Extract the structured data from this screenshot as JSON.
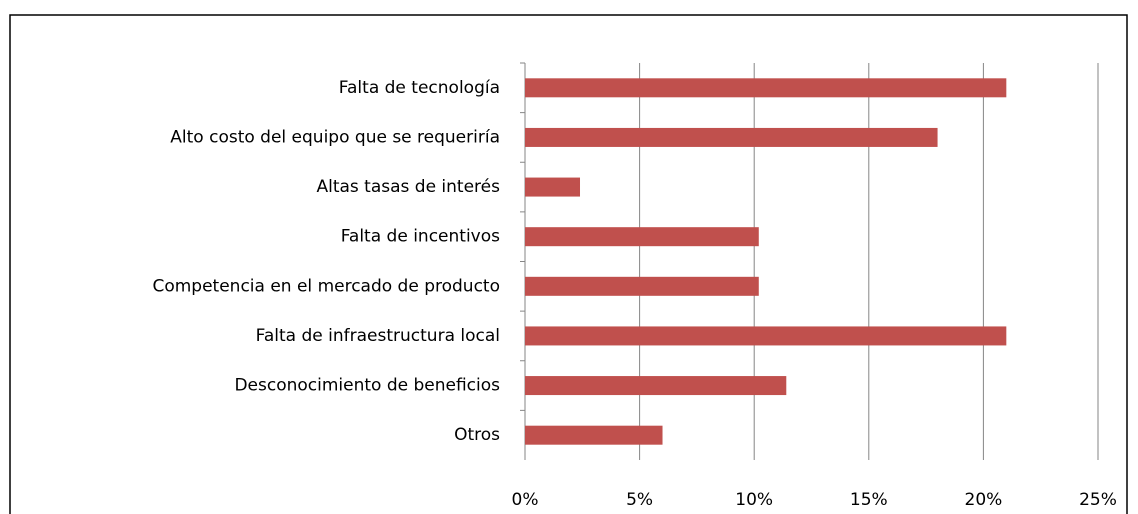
{
  "chart_data": {
    "type": "barh",
    "categories": [
      "Falta de tecnología",
      "Alto costo del equipo que se requeriría",
      "Altas tasas de interés",
      "Falta de incentivos",
      "Competencia en el mercado de producto",
      "Falta de infraestructura local",
      "Desconocimiento de beneficios",
      "Otros"
    ],
    "values": [
      21,
      18,
      2.4,
      10.2,
      10.2,
      21,
      11.4,
      6
    ],
    "color": "#c0504d",
    "xlim": [
      0,
      25
    ],
    "xticks": [
      {
        "value": 0,
        "label": "0%"
      },
      {
        "value": 5,
        "label": "5%"
      },
      {
        "value": 10,
        "label": "10%"
      },
      {
        "value": 15,
        "label": "15%"
      },
      {
        "value": 20,
        "label": "20%"
      },
      {
        "value": 25,
        "label": "25%"
      }
    ],
    "grid": true
  }
}
